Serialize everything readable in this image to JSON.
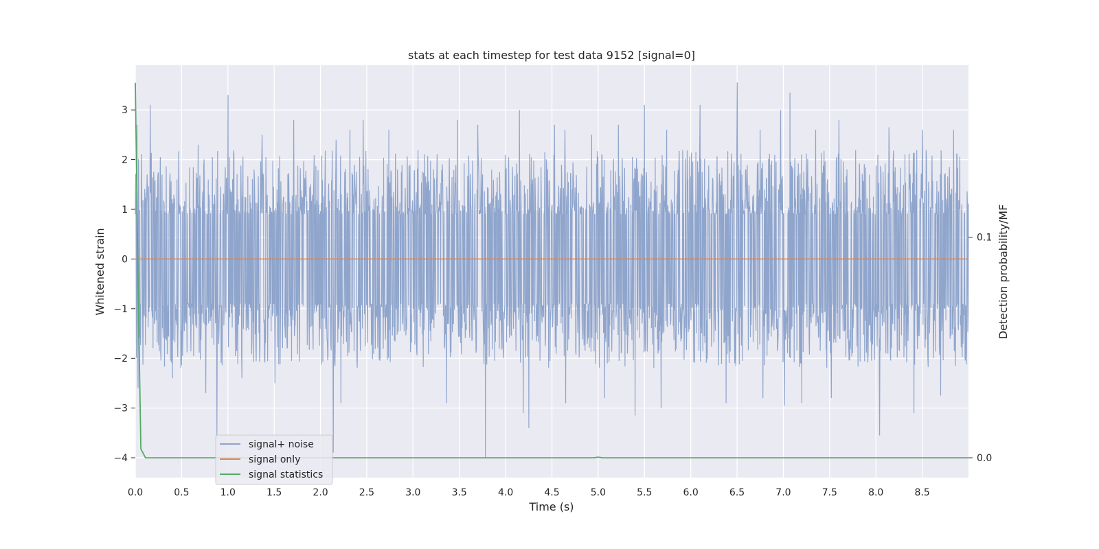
{
  "chart_data": {
    "type": "line",
    "title": "stats at each timestep for test data 9152 [signal=0]",
    "xlabel": "Time (s)",
    "ylabel": "Whitened strain",
    "ylabel_right": "Detection probability/MF",
    "xlim": [
      0.0,
      9.0
    ],
    "ylim": [
      -4.4,
      3.9
    ],
    "ylim_right": [
      -0.009,
      0.178
    ],
    "x_ticks": [
      "0.0",
      "0.5",
      "1.0",
      "1.5",
      "2.0",
      "2.5",
      "3.0",
      "3.5",
      "4.0",
      "4.5",
      "5.0",
      "5.5",
      "6.0",
      "6.5",
      "7.0",
      "7.5",
      "8.0",
      "8.5"
    ],
    "y_ticks": [
      "3",
      "2",
      "1",
      "0",
      "−1",
      "−2",
      "−3",
      "−4"
    ],
    "y_ticks_right": [
      "0.1",
      "0.0"
    ],
    "grid": true,
    "legend_position": "lower-left",
    "colors": {
      "signal_noise": "#8fa5cc",
      "signal_only": "#dd8452",
      "signal_statistics": "#55a868",
      "plot_bg": "#eaeaf2",
      "grid": "#ffffff"
    },
    "series": [
      {
        "name": "signal+ noise",
        "axis": "left",
        "style": "noise-band",
        "peaks": [
          [
            0.02,
            2.7
          ],
          [
            0.16,
            3.1
          ],
          [
            0.68,
            2.3
          ],
          [
            1.0,
            3.3
          ],
          [
            1.37,
            2.5
          ],
          [
            1.71,
            2.8
          ],
          [
            2.17,
            2.4
          ],
          [
            2.32,
            2.6
          ],
          [
            2.46,
            2.8
          ],
          [
            2.74,
            2.6
          ],
          [
            3.48,
            2.8
          ],
          [
            3.7,
            2.7
          ],
          [
            4.15,
            3.0
          ],
          [
            4.53,
            2.7
          ],
          [
            4.64,
            2.6
          ],
          [
            4.93,
            2.5
          ],
          [
            5.22,
            2.7
          ],
          [
            5.5,
            3.1
          ],
          [
            5.74,
            2.6
          ],
          [
            6.1,
            3.1
          ],
          [
            6.5,
            3.55
          ],
          [
            6.75,
            2.6
          ],
          [
            6.97,
            3.0
          ],
          [
            7.07,
            3.35
          ],
          [
            7.35,
            2.6
          ],
          [
            7.6,
            2.8
          ],
          [
            8.14,
            2.65
          ],
          [
            8.5,
            2.6
          ],
          [
            8.84,
            2.6
          ]
        ],
        "troughs": [
          [
            0.03,
            -2.6
          ],
          [
            0.4,
            -2.4
          ],
          [
            0.76,
            -2.7
          ],
          [
            0.88,
            -3.6
          ],
          [
            1.15,
            -2.4
          ],
          [
            1.51,
            -2.5
          ],
          [
            2.14,
            -3.9
          ],
          [
            2.22,
            -2.9
          ],
          [
            3.36,
            -2.9
          ],
          [
            3.78,
            -4.0
          ],
          [
            4.25,
            -3.4
          ],
          [
            4.19,
            -3.1
          ],
          [
            4.65,
            -2.9
          ],
          [
            5.07,
            -2.8
          ],
          [
            5.4,
            -3.15
          ],
          [
            5.68,
            -3.0
          ],
          [
            6.38,
            -2.9
          ],
          [
            6.78,
            -2.8
          ],
          [
            7.01,
            -2.95
          ],
          [
            7.2,
            -2.9
          ],
          [
            7.52,
            -2.8
          ],
          [
            8.04,
            -3.55
          ],
          [
            8.41,
            -3.1
          ],
          [
            8.7,
            -2.75
          ]
        ]
      },
      {
        "name": "signal only",
        "axis": "left",
        "x": [
          0.0,
          9.0
        ],
        "y": [
          0.0,
          0.0
        ]
      },
      {
        "name": "signal statistics",
        "axis": "right",
        "x": [
          0.0,
          0.03,
          0.06,
          0.11,
          0.3,
          1.0,
          2.0,
          3.0,
          4.0,
          4.95,
          5.0,
          5.05,
          6.0,
          7.0,
          8.0,
          9.0
        ],
        "y": [
          0.17,
          0.08,
          0.004,
          0.0,
          0.0,
          0.0,
          0.0,
          0.0,
          0.0,
          0.0,
          0.0003,
          0.0,
          0.0,
          0.0,
          0.0,
          0.0
        ]
      }
    ]
  }
}
